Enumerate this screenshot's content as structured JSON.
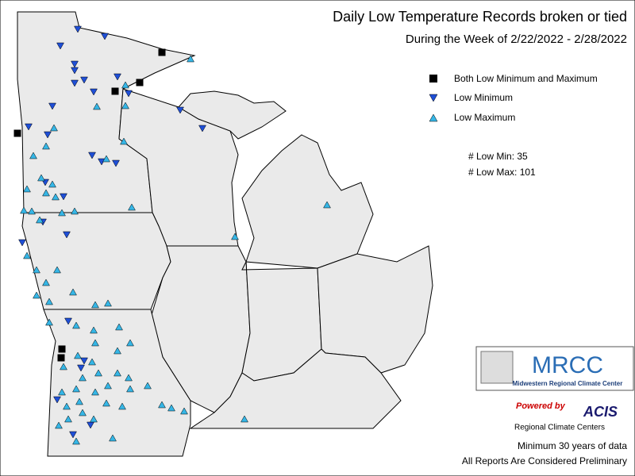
{
  "title": "Daily Low Temperature Records broken or tied",
  "subtitle": "During the Week of 2/22/2022 - 2/28/2022",
  "legend": [
    "Both Low Minimum and Maximum",
    "Low Minimum",
    "Low Maximum"
  ],
  "stats": [
    "# Low Min: 35",
    "# Low Max: 101"
  ],
  "logo": {
    "name": "MRCC",
    "full_name": "Midwestern Regional Climate Center"
  },
  "acis": {
    "powered": "Powered by",
    "name": "ACIS",
    "sub": "Regional Climate Centers"
  },
  "footer": [
    "Minimum 30 years of data",
    "All Reports Are Considered Preliminary"
  ]
}
